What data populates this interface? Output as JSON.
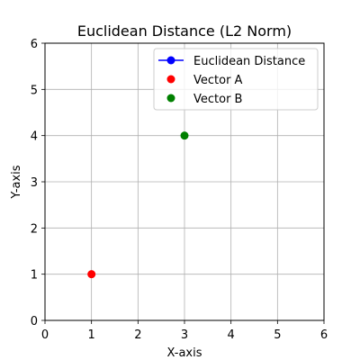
{
  "chart_data": {
    "type": "scatter",
    "title": "Euclidean Distance (L2 Norm)",
    "xlabel": "X-axis",
    "ylabel": "Y-axis",
    "xlim": [
      0,
      6
    ],
    "ylim": [
      0,
      6
    ],
    "xticks": [
      "0",
      "1",
      "2",
      "3",
      "4",
      "5",
      "6"
    ],
    "yticks": [
      "0",
      "1",
      "2",
      "3",
      "4",
      "5",
      "6"
    ],
    "grid": true,
    "legend_position": "top-right",
    "series": [
      {
        "name": "Euclidean Distance",
        "kind": "line",
        "color": "#0000ff",
        "points": []
      },
      {
        "name": "Vector A",
        "kind": "scatter",
        "color": "#ff0000",
        "points": [
          [
            1,
            1
          ]
        ]
      },
      {
        "name": "Vector B",
        "kind": "scatter",
        "color": "#008000",
        "points": [
          [
            3,
            4
          ]
        ]
      }
    ]
  }
}
